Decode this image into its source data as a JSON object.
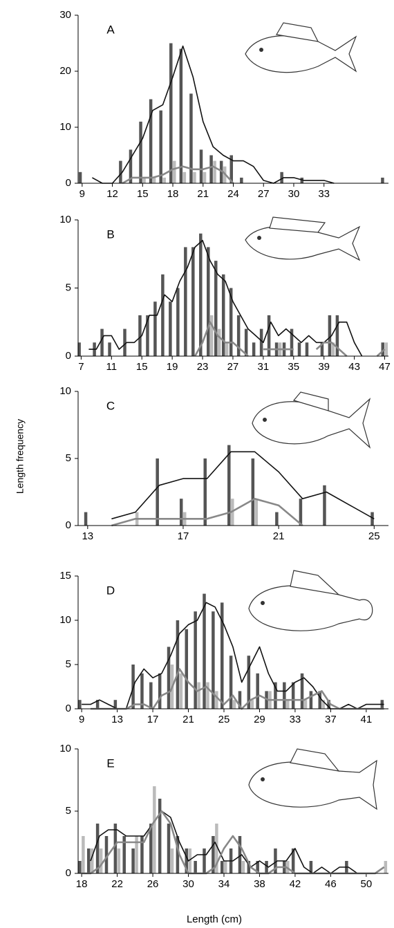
{
  "y_axis_title": "Length frequency",
  "x_axis_title": "Length (cm)",
  "chart_data": [
    {
      "type": "bar",
      "label": "A",
      "x": [
        9,
        10,
        11,
        12,
        13,
        14,
        15,
        16,
        17,
        18,
        19,
        20,
        21,
        22,
        23,
        24,
        25,
        26,
        27,
        28,
        29,
        30,
        31,
        32,
        33,
        34,
        35,
        36,
        37,
        38,
        39
      ],
      "xlim": [
        8.6,
        39.4
      ],
      "xticks": [
        9,
        12,
        15,
        18,
        21,
        24,
        27,
        30,
        33
      ],
      "ylim": [
        0,
        30
      ],
      "yticks": [
        0,
        10,
        20,
        30
      ],
      "series": [
        {
          "kind": "bar",
          "color": "#555555",
          "values": [
            2,
            null,
            null,
            null,
            4,
            6,
            11,
            15,
            13,
            25,
            24,
            16,
            6,
            5,
            4,
            5,
            1,
            null,
            null,
            null,
            2,
            null,
            1,
            null,
            null,
            null,
            null,
            null,
            null,
            null,
            1
          ]
        },
        {
          "kind": "bar",
          "color": "#bbbbbb",
          "values": [
            null,
            null,
            null,
            null,
            null,
            null,
            1,
            1,
            1,
            4,
            2,
            2,
            2,
            4,
            3,
            null,
            null,
            null,
            null,
            null,
            null,
            null,
            null,
            null,
            null,
            null,
            null,
            null,
            null,
            null,
            null
          ]
        },
        {
          "kind": "line",
          "color": "#111111",
          "values": [
            null,
            1,
            0,
            0,
            2,
            5,
            8,
            13,
            14,
            19,
            24.5,
            19,
            11,
            6.5,
            5,
            4,
            4,
            3,
            0.5,
            0,
            1,
            1,
            0.5,
            0.5,
            0.5,
            0,
            null,
            null,
            null,
            null,
            null
          ]
        },
        {
          "kind": "line",
          "color": "#888888",
          "values": [
            null,
            null,
            null,
            null,
            0,
            1,
            1,
            1,
            1.5,
            2.5,
            3,
            2.5,
            2.5,
            3,
            2,
            0,
            null,
            null,
            null,
            null,
            null,
            null,
            null,
            null,
            null,
            null,
            null,
            null,
            null,
            null,
            null
          ]
        }
      ]
    },
    {
      "type": "bar",
      "label": "B",
      "x": [
        7,
        8,
        9,
        10,
        11,
        12,
        13,
        14,
        15,
        16,
        17,
        18,
        19,
        20,
        21,
        22,
        23,
        24,
        25,
        26,
        27,
        28,
        29,
        30,
        31,
        32,
        33,
        34,
        35,
        36,
        37,
        38,
        39,
        40,
        41,
        42,
        43,
        44,
        45,
        46,
        47
      ],
      "xlim": [
        6.6,
        47.5
      ],
      "xticks": [
        7,
        11,
        15,
        19,
        23,
        27,
        31,
        35,
        39,
        43,
        47
      ],
      "ylim": [
        0,
        10
      ],
      "yticks": [
        0,
        5,
        10
      ],
      "series": [
        {
          "kind": "bar",
          "color": "#555555",
          "values": [
            1,
            null,
            1,
            2,
            1,
            null,
            2,
            null,
            3,
            3,
            4,
            6,
            4,
            5,
            8,
            8,
            9,
            8,
            7,
            6,
            5,
            3,
            2,
            1,
            2,
            3,
            1,
            1,
            2,
            1,
            1,
            null,
            1,
            3,
            3,
            null,
            null,
            null,
            null,
            null,
            1
          ]
        },
        {
          "kind": "bar",
          "color": "#bbbbbb",
          "values": [
            null,
            null,
            null,
            null,
            null,
            null,
            null,
            null,
            null,
            null,
            null,
            null,
            null,
            null,
            null,
            null,
            null,
            3,
            2,
            1,
            null,
            null,
            null,
            null,
            null,
            null,
            1,
            null,
            null,
            null,
            null,
            null,
            null,
            1,
            null,
            null,
            null,
            null,
            null,
            null,
            1
          ]
        },
        {
          "kind": "line",
          "color": "#111111",
          "values": [
            null,
            0.5,
            0.5,
            1.5,
            1.5,
            0.5,
            1,
            1,
            1.5,
            3,
            3,
            4.5,
            4,
            5.5,
            6.5,
            8,
            8.5,
            7,
            6,
            5.5,
            4,
            3,
            2,
            1.5,
            1,
            2.5,
            1.5,
            2,
            1.5,
            1,
            1.5,
            1,
            1,
            1.5,
            2.5,
            2.5,
            1,
            0,
            null,
            null,
            null
          ]
        },
        {
          "kind": "line",
          "color": "#888888",
          "values": [
            null,
            null,
            null,
            null,
            null,
            null,
            null,
            null,
            null,
            null,
            null,
            null,
            null,
            null,
            null,
            0,
            1,
            2.5,
            1.5,
            1,
            1,
            0.5,
            0,
            null,
            0.5,
            0.5,
            0.5,
            0.5,
            0.5,
            null,
            null,
            0.5,
            1,
            1,
            0.5,
            0,
            null,
            null,
            null,
            0,
            0.5
          ]
        }
      ]
    },
    {
      "type": "bar",
      "label": "C",
      "x": [
        13,
        14,
        15,
        16,
        17,
        18,
        19,
        20,
        21,
        22,
        23,
        24,
        25
      ],
      "xlim": [
        12.6,
        25.6
      ],
      "xticks": [
        13,
        17,
        21,
        25
      ],
      "ylim": [
        0,
        10
      ],
      "yticks": [
        0,
        5,
        10
      ],
      "series": [
        {
          "kind": "bar",
          "color": "#555555",
          "values": [
            1,
            null,
            null,
            5,
            2,
            5,
            6,
            5,
            1,
            2,
            3,
            null,
            1
          ]
        },
        {
          "kind": "bar",
          "color": "#bbbbbb",
          "values": [
            null,
            null,
            1,
            null,
            1,
            null,
            2,
            2,
            null,
            null,
            null,
            null,
            null
          ]
        },
        {
          "kind": "line",
          "color": "#111111",
          "values": [
            null,
            0.5,
            1,
            3,
            3.5,
            3.5,
            5.5,
            5.5,
            4,
            2,
            2.5,
            1.5,
            0.5
          ]
        },
        {
          "kind": "line",
          "color": "#888888",
          "values": [
            null,
            0,
            0.5,
            0.5,
            0.5,
            0.5,
            1,
            2,
            1.5,
            0,
            null,
            null,
            null
          ]
        }
      ]
    },
    {
      "type": "bar",
      "label": "D",
      "x": [
        9,
        10,
        11,
        12,
        13,
        14,
        15,
        16,
        17,
        18,
        19,
        20,
        21,
        22,
        23,
        24,
        25,
        26,
        27,
        28,
        29,
        30,
        31,
        32,
        33,
        34,
        35,
        36,
        37,
        38,
        39,
        40,
        41,
        42,
        43
      ],
      "xlim": [
        8.6,
        43.5
      ],
      "xticks": [
        9,
        13,
        17,
        21,
        25,
        29,
        33,
        37,
        41
      ],
      "ylim": [
        0,
        15
      ],
      "yticks": [
        0,
        5,
        10,
        15
      ],
      "series": [
        {
          "kind": "bar",
          "color": "#555555",
          "values": [
            1,
            null,
            1,
            null,
            1,
            null,
            5,
            4,
            3,
            4,
            7,
            10,
            9,
            11,
            13,
            11,
            12,
            6,
            2,
            6,
            4,
            2,
            3,
            3,
            3,
            4,
            2,
            2,
            1,
            null,
            null,
            null,
            null,
            null,
            1
          ]
        },
        {
          "kind": "bar",
          "color": "#bbbbbb",
          "values": [
            null,
            null,
            null,
            null,
            null,
            null,
            null,
            null,
            null,
            null,
            5,
            4,
            null,
            3,
            3,
            2,
            null,
            1,
            null,
            1,
            null,
            2,
            null,
            1,
            null,
            1,
            null,
            1,
            null,
            null,
            null,
            null,
            null,
            null,
            null
          ]
        },
        {
          "kind": "line",
          "color": "#111111",
          "values": [
            0.5,
            0.5,
            1,
            0.5,
            0,
            0,
            3,
            4.5,
            3.5,
            4,
            6,
            8.5,
            9.5,
            10,
            12,
            11.5,
            9.5,
            7,
            3,
            5,
            7,
            4,
            2,
            2,
            3,
            3.5,
            2.5,
            1,
            0,
            0,
            0.5,
            0,
            0.5,
            0.5,
            0.5
          ]
        },
        {
          "kind": "line",
          "color": "#888888",
          "values": [
            null,
            0,
            0,
            0,
            0,
            0,
            0.5,
            0.5,
            0,
            1.5,
            2,
            4.5,
            3,
            2,
            2.5,
            1.5,
            0.5,
            1.5,
            0,
            1,
            1.5,
            1,
            1,
            1,
            1,
            1,
            1.5,
            2,
            0.5,
            0,
            0,
            0,
            0,
            0,
            0
          ]
        }
      ]
    },
    {
      "type": "bar",
      "label": "E",
      "x": [
        18,
        19,
        20,
        21,
        22,
        23,
        24,
        25,
        26,
        27,
        28,
        29,
        30,
        31,
        32,
        33,
        34,
        35,
        36,
        37,
        38,
        39,
        40,
        41,
        42,
        43,
        44,
        45,
        46,
        47,
        48,
        49,
        50,
        51,
        52
      ],
      "xlim": [
        17.6,
        52.5
      ],
      "xticks": [
        18,
        22,
        26,
        30,
        34,
        38,
        42,
        46,
        50
      ],
      "ylim": [
        0,
        10
      ],
      "yticks": [
        0,
        5,
        10
      ],
      "series": [
        {
          "kind": "bar",
          "color": "#555555",
          "values": [
            1,
            2,
            4,
            3,
            4,
            3,
            2,
            3,
            4,
            6,
            4,
            3,
            2,
            1,
            2,
            3,
            1,
            2,
            3,
            1,
            1,
            1,
            2,
            1,
            2,
            null,
            1,
            null,
            null,
            null,
            1,
            null,
            null,
            null,
            null
          ]
        },
        {
          "kind": "bar",
          "color": "#bbbbbb",
          "values": [
            3,
            2,
            2,
            null,
            2,
            null,
            3,
            null,
            7,
            null,
            2,
            null,
            2,
            null,
            null,
            4,
            1,
            null,
            1,
            null,
            null,
            null,
            null,
            1,
            null,
            null,
            null,
            null,
            null,
            null,
            null,
            null,
            null,
            null,
            1
          ]
        },
        {
          "kind": "line",
          "color": "#111111",
          "values": [
            null,
            1,
            3,
            3.5,
            3.5,
            3,
            3,
            3,
            4,
            5,
            4.5,
            2.5,
            1,
            1.5,
            1.5,
            2.5,
            1,
            1,
            1.5,
            0.5,
            1,
            0.5,
            1,
            1,
            2,
            0.5,
            0,
            0.5,
            0,
            0.5,
            0.5,
            0,
            0,
            0,
            0.5
          ]
        },
        {
          "kind": "line",
          "color": "#888888",
          "values": [
            0,
            0,
            0.5,
            1.5,
            2.5,
            2.5,
            2.5,
            2.5,
            4,
            5,
            4,
            1.5,
            0,
            0,
            0,
            0.5,
            2,
            3,
            2,
            0.5,
            0,
            0,
            0.5,
            0.5,
            0,
            0,
            0,
            0,
            0,
            0,
            0,
            0,
            0,
            0,
            0.5
          ]
        }
      ]
    }
  ]
}
